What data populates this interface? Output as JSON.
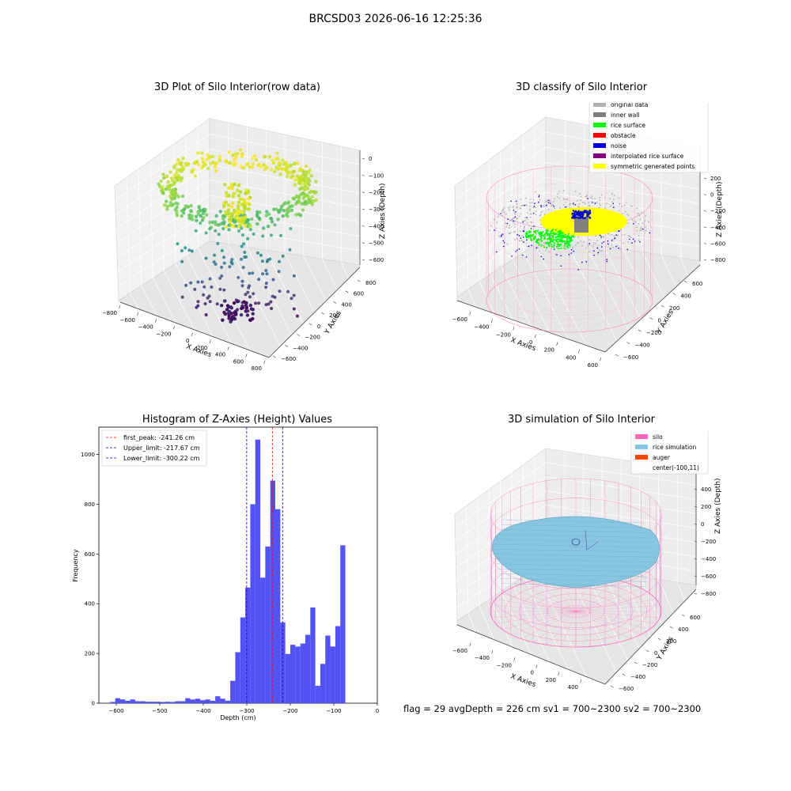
{
  "suptitle": "BRCSD03 2026-06-16 12:25:36",
  "footer": "flag = 29  avgDepth = 226 cm  sv1 = 700~2300  sv2 = 700~2300",
  "colors": {
    "hist": "#5050f5",
    "peak_line": "#ff0000",
    "limit_line": "#0000cc",
    "silo": "#ff69b4",
    "rice_sim": "#87c5e0",
    "auger": "#ff4500",
    "original": "#b0b0b0",
    "inner_wall": "#808080",
    "rice_surface": "#00ff00",
    "obstacle": "#ff0000",
    "noise": "#0000e0",
    "interp": "#800080",
    "symmetric": "#ffff00"
  },
  "panel1": {
    "title": "3D Plot of Silo Interior(row data)",
    "xlabel": "X Axies",
    "ylabel": "Y Axies",
    "zlabel": "Z Axies (Depth)",
    "xticks": [
      "−800",
      "−600",
      "−400",
      "−200",
      "0",
      "200",
      "400",
      "600",
      "800"
    ],
    "yticks": [
      "−600",
      "−400",
      "−200",
      "0",
      "200",
      "400",
      "600",
      "800"
    ],
    "zticks": [
      "0",
      "−100",
      "−200",
      "−300",
      "−400",
      "−500",
      "−600"
    ]
  },
  "panel2": {
    "title": "3D classify of Silo Interior",
    "xlabel": "X Axies",
    "ylabel": "Y Axies",
    "zlabel": "Z Axies (Depth)",
    "xticks": [
      "−600",
      "−400",
      "−200",
      "0",
      "200",
      "400",
      "600"
    ],
    "yticks": [
      "−600",
      "−400",
      "−200",
      "0",
      "200",
      "400",
      "600"
    ],
    "zticks": [
      "200",
      "0",
      "−200",
      "−400",
      "−600",
      "−800"
    ],
    "legend": [
      {
        "label": "original data",
        "color": "#b0b0b0"
      },
      {
        "label": "inner wall",
        "color": "#808080"
      },
      {
        "label": "rice surface",
        "color": "#00ff00"
      },
      {
        "label": "obstacle",
        "color": "#ff0000"
      },
      {
        "label": "noise",
        "color": "#0000e0"
      },
      {
        "label": "interpolated rice surface",
        "color": "#800080"
      },
      {
        "label": "symmetric generated points",
        "color": "#ffff00"
      }
    ]
  },
  "panel4": {
    "title": "3D simulation of Silo Interior",
    "xlabel": "X Axies",
    "ylabel": "Y Axies",
    "zlabel": "Z Axies (Depth)",
    "xticks": [
      "−600",
      "−400",
      "−200",
      "0",
      "200",
      "400"
    ],
    "yticks": [
      "−600",
      "−400",
      "−200",
      "0",
      "200",
      "400",
      "600"
    ],
    "zticks": [
      "400",
      "200",
      "0",
      "−200",
      "−400",
      "−600",
      "−800"
    ],
    "legend": [
      {
        "label": "silo",
        "color": "#ff69b4"
      },
      {
        "label": "rice simulation",
        "color": "#87c5e0"
      },
      {
        "label": "auger",
        "color": "#ff4500"
      },
      {
        "label": "center(-100,11)",
        "color": ""
      }
    ]
  },
  "chart_data": [
    {
      "type": "bar",
      "title": "Histogram of Z-Axies (Height) Values",
      "xlabel": "Depth (cm)",
      "ylabel": "Frequency",
      "xlim": [
        -640,
        0
      ],
      "ylim": [
        0,
        1110
      ],
      "xticks": [
        -600,
        -500,
        -400,
        -300,
        -200,
        -100,
        0
      ],
      "yticks": [
        0,
        200,
        400,
        600,
        800,
        1000
      ],
      "bin_start": -614,
      "bin_width": 11.5,
      "values": [
        5,
        20,
        15,
        10,
        15,
        8,
        8,
        6,
        6,
        6,
        5,
        6,
        5,
        8,
        8,
        20,
        15,
        18,
        12,
        15,
        10,
        28,
        18,
        10,
        90,
        205,
        345,
        465,
        800,
        1060,
        505,
        630,
        895,
        780,
        325,
        198,
        235,
        228,
        240,
        275,
        385,
        70,
        158,
        272,
        228,
        310,
        635
      ],
      "vlines": [
        {
          "label": "first_peak: -241.26 cm",
          "x": -241.26,
          "color": "#ff0000"
        },
        {
          "label": "Upper_limit: -217.67 cm",
          "x": -217.67,
          "color": "#0000cc"
        },
        {
          "label": "Lower_limit: -300.22 cm",
          "x": -300.22,
          "color": "#0000cc"
        }
      ],
      "legend_position": "upper-left"
    }
  ]
}
